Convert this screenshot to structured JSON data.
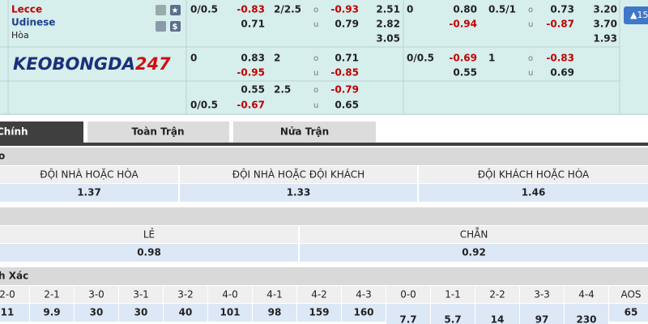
{
  "match": {
    "home": "Lecce",
    "away": "Udinese",
    "draw": "Hòa"
  },
  "logo": {
    "text": "KEOBONGDA",
    "number": "247"
  },
  "button": "▲15",
  "odds": [
    [
      "0/0.5",
      "-0.83",
      "2/2.5",
      "o",
      "-0.93",
      "2.51",
      "0",
      "0.80",
      "0.5/1",
      "o",
      "0.73",
      "3.20"
    ],
    [
      null,
      "0.71",
      null,
      "u",
      "0.79",
      "2.82",
      null,
      "-0.94",
      null,
      "u",
      "-0.87",
      "3.70"
    ],
    [
      null,
      null,
      null,
      null,
      null,
      "3.05",
      null,
      null,
      null,
      null,
      null,
      "1.93"
    ],
    [
      "0",
      "0.83",
      "2",
      "o",
      "0.71",
      null,
      "0/0.5",
      "-0.69",
      "1",
      "o",
      "-0.83",
      null
    ],
    [
      null,
      "-0.95",
      null,
      "u",
      "-0.85",
      null,
      null,
      "0.55",
      null,
      "u",
      "0.69",
      null
    ],
    [
      null,
      "0.55",
      "2.5",
      "o",
      "-0.79",
      null,
      null,
      null,
      null,
      null,
      null,
      null
    ],
    [
      "0/0.5",
      "-0.67",
      null,
      "u",
      "0.65",
      null,
      null,
      null,
      null,
      null,
      null,
      null
    ]
  ],
  "tabs": [
    "Chính",
    "Toàn Trận",
    "Nửa Trận"
  ],
  "sections": [
    {
      "title": "o",
      "headers": [
        "ĐỘI NHÀ HOẶC HÒA",
        "ĐỘI NHÀ HOẶC ĐỘI KHÁCH",
        "ĐỘI KHÁCH HOẶC HÒA"
      ],
      "values": [
        1.37,
        1.33,
        1.46
      ]
    },
    {
      "headers": [
        "LẺ",
        "CHẴN"
      ],
      "values": [
        0.98,
        0.92
      ]
    },
    {
      "title": "h Xác",
      "headers": [
        "2-0",
        "2-1",
        "3-0",
        "3-1",
        "3-2",
        "4-0",
        "4-1",
        "4-2",
        "4-3",
        "0-0",
        "1-1",
        "2-2",
        "3-3",
        "4-4",
        "AOS"
      ],
      "values": [
        11,
        9.9,
        30,
        30,
        40,
        101,
        98,
        159,
        160,
        7.7,
        5.7,
        14,
        97,
        230,
        65
      ]
    }
  ]
}
